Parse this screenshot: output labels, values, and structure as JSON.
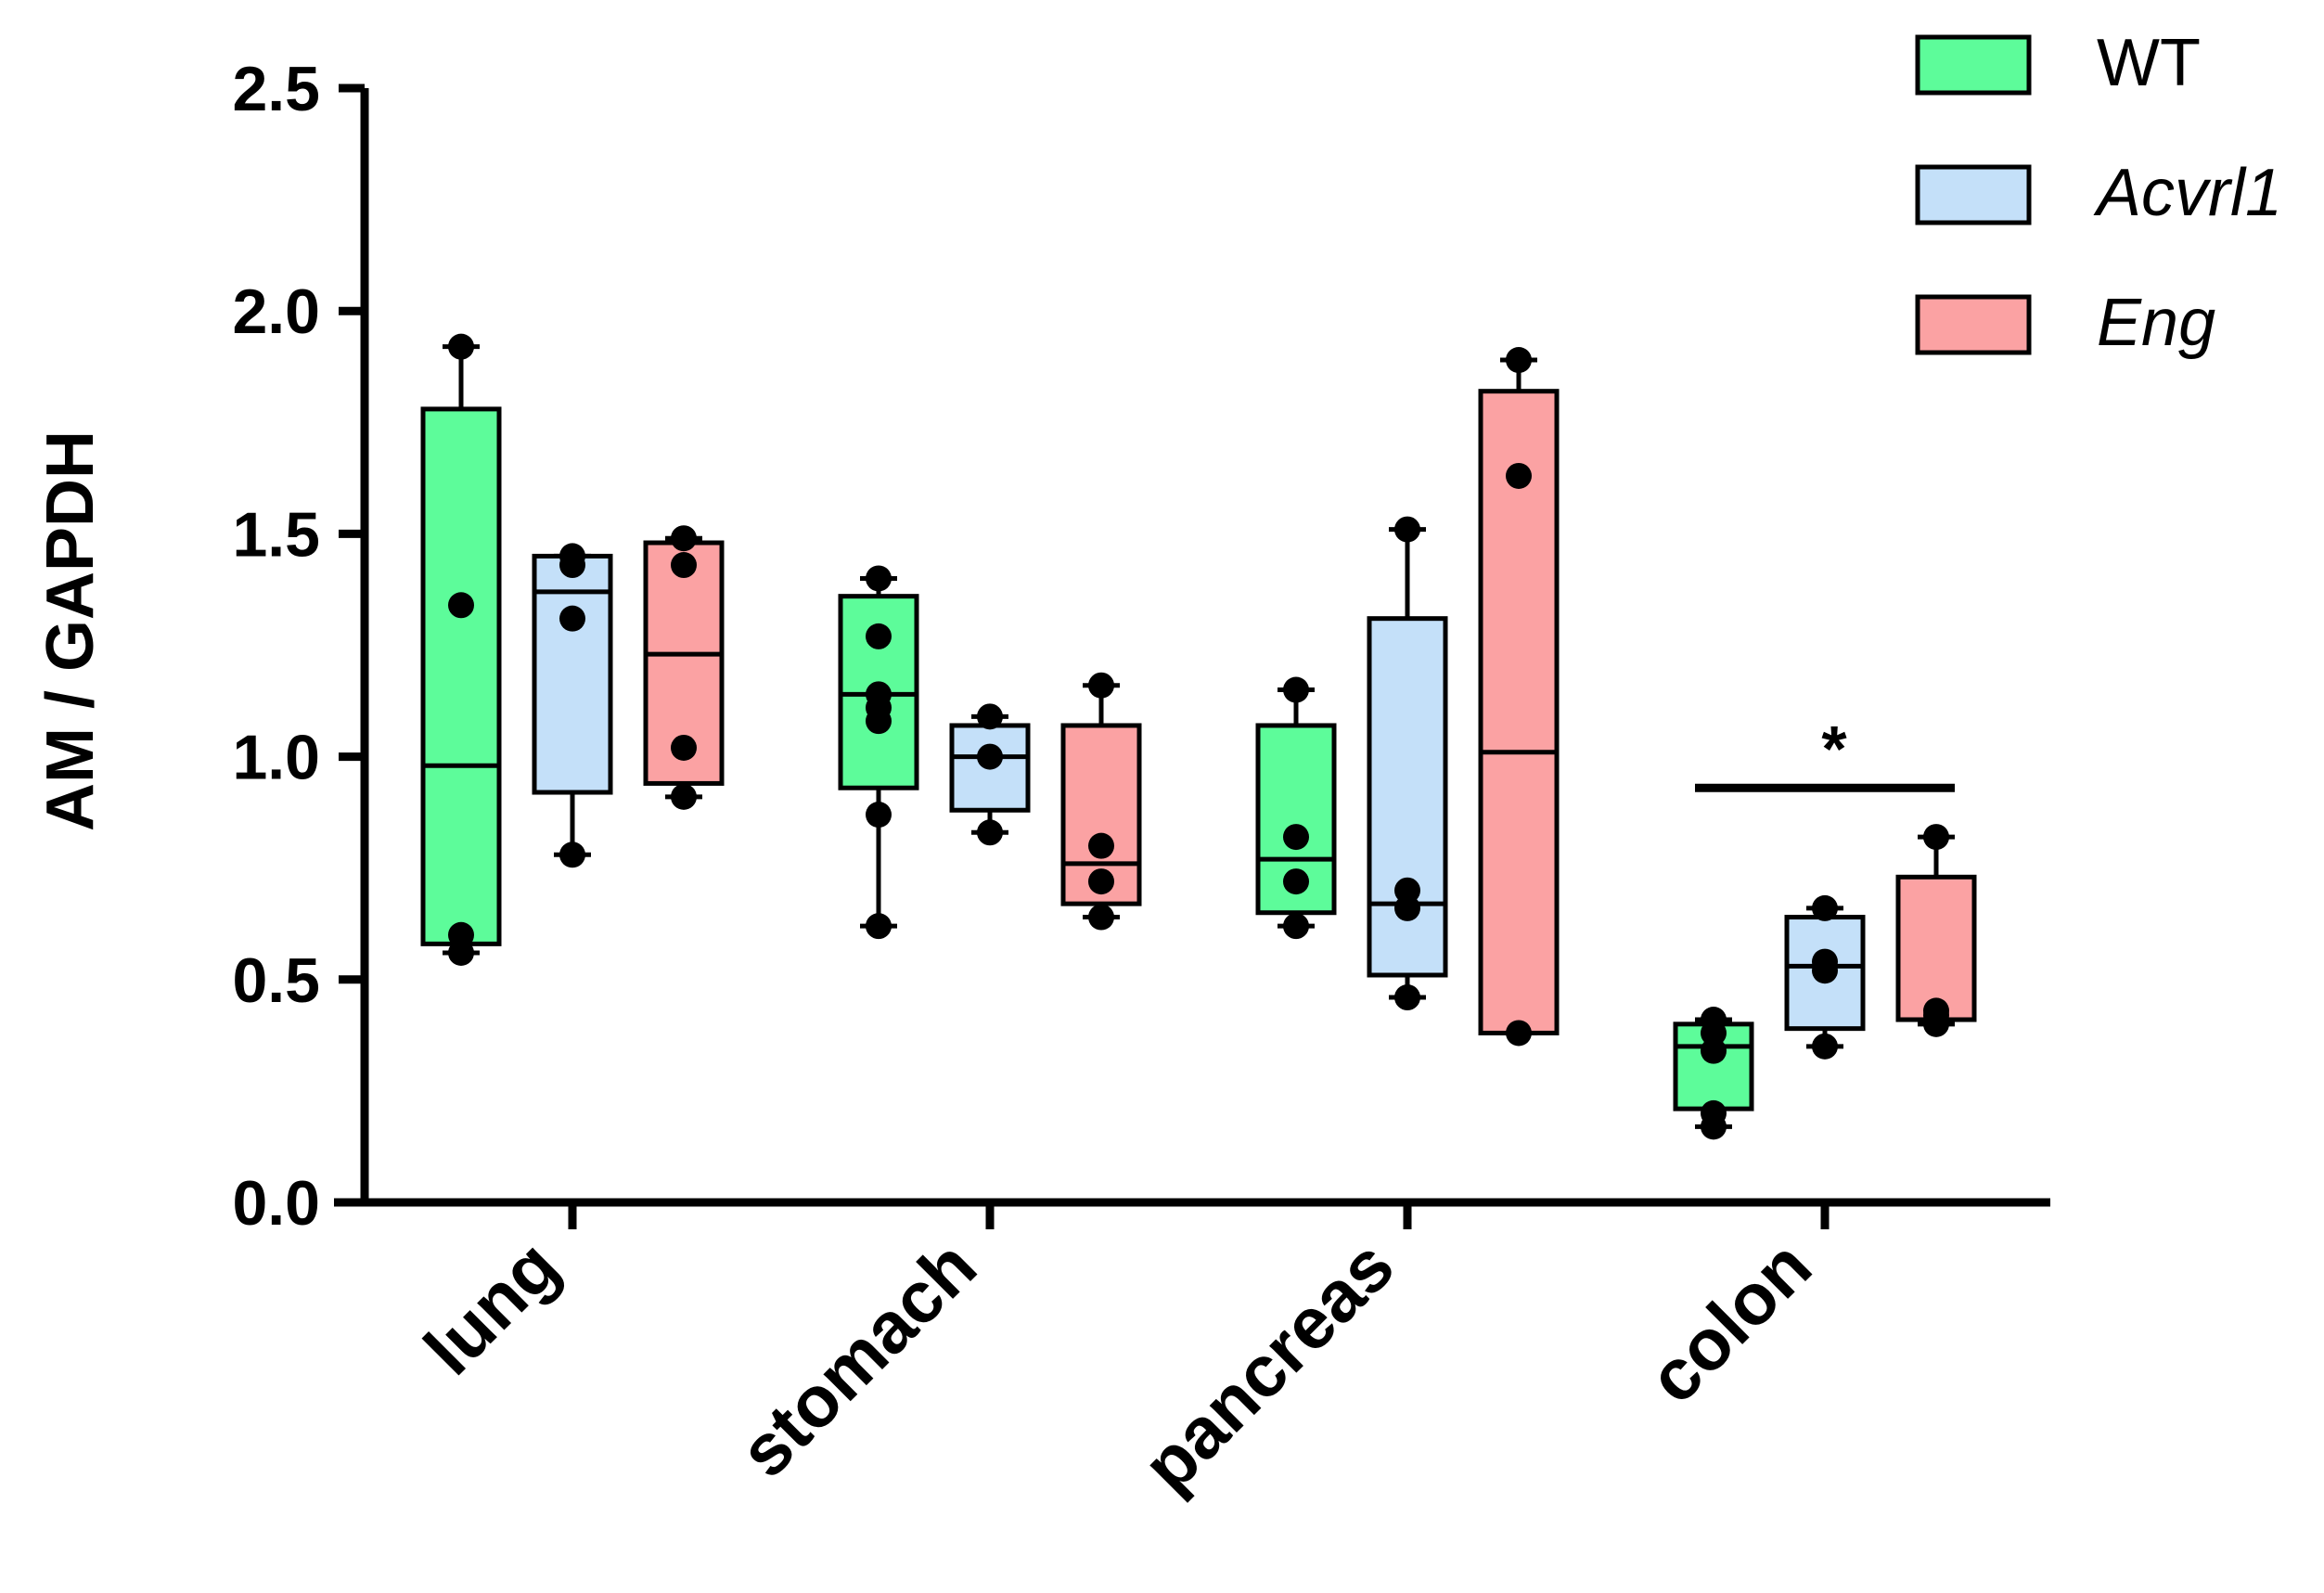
{
  "chart_data": {
    "type": "box",
    "ylabel": "AM / GAPDH",
    "xlabel": "",
    "ylim": [
      0,
      2.5
    ],
    "yticks": [
      "0.0",
      "0.5",
      "1.0",
      "1.5",
      "2.0",
      "2.5"
    ],
    "ytick_values": [
      0,
      0.5,
      1.0,
      1.5,
      2.0,
      2.5
    ],
    "categories": [
      "lung",
      "stomach",
      "pancreas",
      "colon"
    ],
    "legend_position": "top-right",
    "series": [
      {
        "name": "WT",
        "italic": false,
        "color": "#5dfc9a",
        "boxes": [
          {
            "min": 0.56,
            "q1": 0.58,
            "median": 0.98,
            "q3": 1.78,
            "max": 1.92,
            "points": [
              0.56,
              0.6,
              1.34,
              1.92
            ]
          },
          {
            "min": 0.62,
            "q1": 0.93,
            "median": 1.14,
            "q3": 1.36,
            "max": 1.4,
            "points": [
              0.62,
              0.87,
              1.08,
              1.11,
              1.14,
              1.27,
              1.4
            ]
          },
          {
            "min": 0.62,
            "q1": 0.65,
            "median": 0.77,
            "q3": 1.07,
            "max": 1.15,
            "points": [
              0.62,
              0.72,
              0.82,
              1.15
            ]
          },
          {
            "min": 0.17,
            "q1": 0.21,
            "median": 0.35,
            "q3": 0.4,
            "max": 0.41,
            "points": [
              0.17,
              0.2,
              0.34,
              0.38,
              0.41
            ]
          }
        ]
      },
      {
        "name": "Acvrl1",
        "italic": true,
        "color": "#c4e0f9",
        "boxes": [
          {
            "min": 0.78,
            "q1": 0.92,
            "median": 1.37,
            "q3": 1.45,
            "max": 1.45,
            "points": [
              0.78,
              1.31,
              1.43,
              1.45
            ]
          },
          {
            "min": 0.83,
            "q1": 0.88,
            "median": 1.0,
            "q3": 1.07,
            "max": 1.09,
            "points": [
              0.83,
              1.0,
              1.09
            ]
          },
          {
            "min": 0.46,
            "q1": 0.51,
            "median": 0.67,
            "q3": 1.31,
            "max": 1.51,
            "points": [
              0.46,
              0.66,
              0.7,
              1.51
            ]
          },
          {
            "min": 0.35,
            "q1": 0.39,
            "median": 0.53,
            "q3": 0.64,
            "max": 0.66,
            "points": [
              0.35,
              0.52,
              0.54,
              0.66
            ]
          }
        ]
      },
      {
        "name": "Eng",
        "italic": true,
        "color": "#fba2a3",
        "boxes": [
          {
            "min": 0.91,
            "q1": 0.94,
            "median": 1.23,
            "q3": 1.48,
            "max": 1.49,
            "points": [
              0.91,
              1.02,
              1.43,
              1.49
            ]
          },
          {
            "min": 0.64,
            "q1": 0.67,
            "median": 0.76,
            "q3": 1.07,
            "max": 1.16,
            "points": [
              0.64,
              0.72,
              0.8,
              1.16
            ]
          },
          {
            "min": 0.38,
            "q1": 0.38,
            "median": 1.01,
            "q3": 1.82,
            "max": 1.89,
            "points": [
              0.38,
              1.63,
              1.89
            ]
          },
          {
            "min": 0.4,
            "q1": 0.41,
            "median": 0.41,
            "q3": 0.73,
            "max": 0.82,
            "points": [
              0.4,
              0.42,
              0.43,
              0.82
            ]
          }
        ]
      }
    ],
    "annotations": [
      {
        "text": "*",
        "category": "colon",
        "from_series": 0,
        "to_series": 2,
        "bar_y": 0.93,
        "text_y": 1.03
      }
    ]
  }
}
